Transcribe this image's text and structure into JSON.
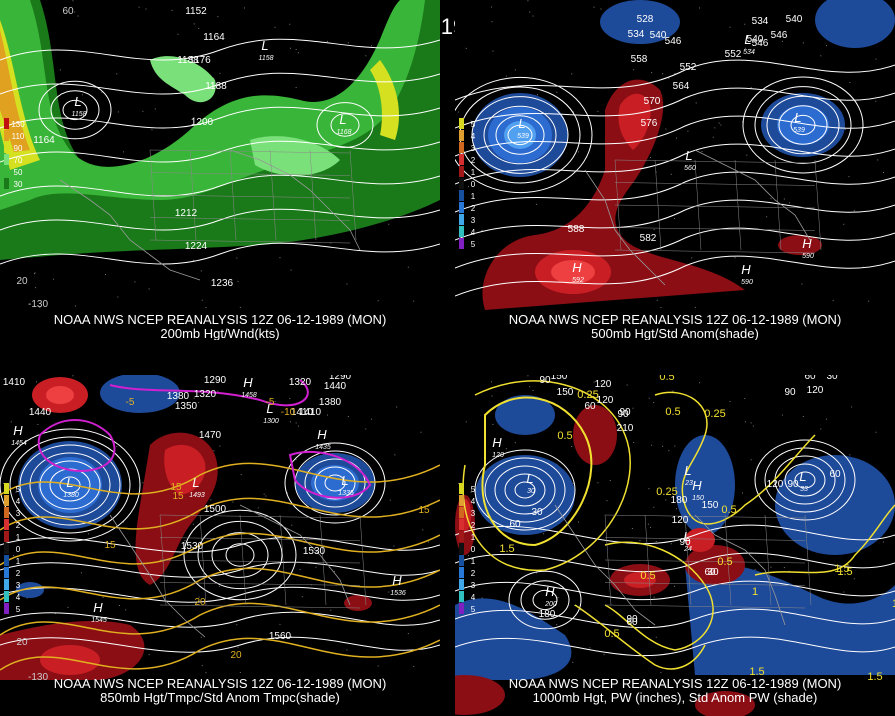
{
  "title": "12Z 06-12-1989 (MON)",
  "panels": [
    {
      "id": "p200",
      "caption_line1": "NOAA NWS NCEP REANALYSIS 12Z 06-12-1989 (MON)",
      "caption_line2": "200mb Hgt/Wnd(kts)",
      "legend": [
        "130",
        "110",
        "90",
        "70",
        "50",
        "30"
      ],
      "contour_labels": [
        "1152",
        "1164",
        "1176",
        "1188",
        "1200",
        "1212",
        "1224",
        "1236",
        "1164",
        "1188"
      ],
      "lat_labels": [
        "60",
        "20"
      ],
      "lon_labels": [
        "-130"
      ],
      "low_values": [
        "1158",
        "1158",
        "1168"
      ]
    },
    {
      "id": "p500",
      "caption_line1": "NOAA NWS NCEP REANALYSIS 12Z 06-12-1989 (MON)",
      "caption_line2": "500mb Hgt/Std Anom(shade)",
      "legend": [
        "5",
        "4",
        "3",
        "2",
        "1",
        "0",
        "1",
        "2",
        "3",
        "4",
        "5"
      ],
      "contour_labels": [
        "528",
        "534",
        "540",
        "546",
        "552",
        "558",
        "564",
        "570",
        "576",
        "582",
        "588",
        "534",
        "540",
        "546",
        "552",
        "540",
        "546"
      ],
      "low_values": [
        "539",
        "560",
        "539",
        "534"
      ],
      "high_values": [
        "592",
        "590",
        "590"
      ]
    },
    {
      "id": "p850",
      "caption_line1": "NOAA NWS NCEP REANALYSIS 12Z 06-12-1989 (MON)",
      "caption_line2": "850mb Hgt/Tmpc/Std Anom Tmpc(shade)",
      "legend": [
        "5",
        "4",
        "3",
        "2",
        "1",
        "0",
        "1",
        "2",
        "3",
        "4",
        "5"
      ],
      "contour_labels": [
        "1410",
        "1440",
        "1470",
        "1500",
        "1530",
        "1560",
        "1380",
        "1350",
        "1320",
        "1290",
        "1410",
        "1440",
        "1530",
        "1410",
        "1380",
        "1290",
        "1320"
      ],
      "temp_labels": [
        "-5",
        "-5",
        "-10",
        "15",
        "15",
        "15",
        "20",
        "20",
        "15"
      ],
      "lat_labels": [
        "20"
      ],
      "lon_labels": [
        "-130"
      ],
      "high_values": [
        "1454",
        "1545",
        "1536",
        "1458",
        "1435"
      ],
      "low_values": [
        "1380",
        "1335",
        "1493",
        "1300"
      ]
    },
    {
      "id": "p1000",
      "caption_line1": "NOAA NWS NCEP REANALYSIS 12Z 06-12-1989 (MON)",
      "caption_line2": "1000mb Hgt, PW (inches), Std Anom PW (shade)",
      "legend": [
        "5",
        "4",
        "3",
        "2",
        "1",
        "0",
        "1",
        "2",
        "3",
        "4",
        "5"
      ],
      "contour_labels": [
        "90",
        "120",
        "150",
        "90",
        "60",
        "30",
        "60",
        "90",
        "120",
        "150",
        "180",
        "210",
        "180",
        "150",
        "120",
        "90",
        "60",
        "30",
        "60",
        "90",
        "120",
        "90",
        "60",
        "30",
        "90",
        "60",
        "120"
      ],
      "pw_labels": [
        "0.5",
        "0.25",
        "0.5",
        "0.25",
        "0.5",
        "0.25",
        "0.5",
        "1.5",
        "1.5",
        "1.5",
        "1",
        "0.5",
        "0.5",
        "1.5",
        "1.5",
        "1",
        "0.5"
      ],
      "high_values": [
        "120",
        "200",
        "150"
      ],
      "low_values": [
        "30",
        "23",
        "24",
        "33"
      ]
    }
  ],
  "colors": {
    "background": "#000000",
    "wind_dark": "#1a7a1a",
    "wind_mid": "#39b539",
    "wind_light": "#7ae07a",
    "wind_yellow": "#d4e020",
    "wind_orange": "#e0a020",
    "wind_red": "#c01010",
    "anom_red_dark": "#8a0e14",
    "anom_red": "#c81e24",
    "anom_red_light": "#ee4040",
    "anom_blue_dark": "#1e4a9a",
    "anom_blue": "#2c6cd0",
    "anom_blue_light": "#52a0f0",
    "temp_contour": "#e0b020",
    "pw_contour": "#f0e030",
    "neg_temp": "#d020d0"
  }
}
